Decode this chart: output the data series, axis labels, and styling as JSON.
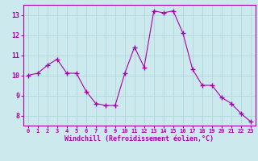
{
  "x": [
    0,
    1,
    2,
    3,
    4,
    5,
    6,
    7,
    8,
    9,
    10,
    11,
    12,
    13,
    14,
    15,
    16,
    17,
    18,
    19,
    20,
    21,
    22,
    23
  ],
  "y": [
    10.0,
    10.1,
    10.5,
    10.8,
    10.1,
    10.1,
    9.2,
    8.6,
    8.5,
    8.5,
    10.1,
    11.4,
    10.4,
    13.2,
    13.1,
    13.2,
    12.1,
    10.3,
    9.5,
    9.5,
    8.9,
    8.6,
    8.1,
    7.7
  ],
  "line_color": "#aa00aa",
  "marker": "+",
  "marker_size": 4,
  "bg_color": "#cce9ed",
  "grid_color": "#aad4d8",
  "xlabel": "Windchill (Refroidissement éolien,°C)",
  "ylabel": "",
  "xlim": [
    -0.5,
    23.5
  ],
  "ylim": [
    7.5,
    13.5
  ],
  "yticks": [
    8,
    9,
    10,
    11,
    12,
    13
  ],
  "xticks": [
    0,
    1,
    2,
    3,
    4,
    5,
    6,
    7,
    8,
    9,
    10,
    11,
    12,
    13,
    14,
    15,
    16,
    17,
    18,
    19,
    20,
    21,
    22,
    23
  ],
  "tick_color": "#aa00aa",
  "label_color": "#aa00aa",
  "spine_color": "#aa00aa",
  "title_color": "#aa00aa"
}
